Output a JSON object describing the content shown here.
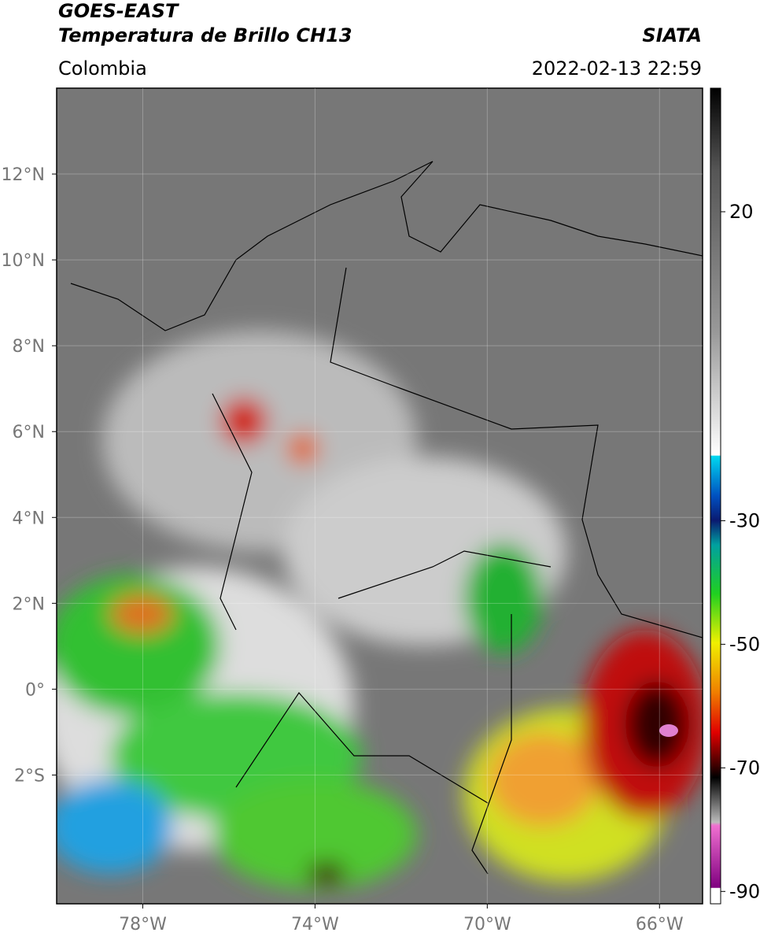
{
  "header": {
    "title": "GOES-EAST",
    "subtitle": "Temperatura de Brillo CH13",
    "source": "SIATA",
    "region": "Colombia",
    "datetime": "2022-02-13 22:59"
  },
  "map": {
    "xlim": [
      -80,
      -65
    ],
    "ylim": [
      -5,
      14
    ],
    "xticks": [
      {
        "value": -78,
        "label": "78°W"
      },
      {
        "value": -74,
        "label": "74°W"
      },
      {
        "value": -70,
        "label": "70°W"
      },
      {
        "value": -66,
        "label": "66°W"
      }
    ],
    "yticks": [
      {
        "value": 12,
        "label": "12°N"
      },
      {
        "value": 10,
        "label": "10°N"
      },
      {
        "value": 8,
        "label": "8°N"
      },
      {
        "value": 6,
        "label": "6°N"
      },
      {
        "value": 4,
        "label": "4°N"
      },
      {
        "value": 2,
        "label": "2°N"
      },
      {
        "value": 0,
        "label": "0°"
      },
      {
        "value": -2,
        "label": "2°S"
      }
    ],
    "grid": true
  },
  "colorbar": {
    "lim": [
      -92,
      40
    ],
    "ticks": [
      20,
      -30,
      -50,
      -70,
      -90
    ]
  }
}
